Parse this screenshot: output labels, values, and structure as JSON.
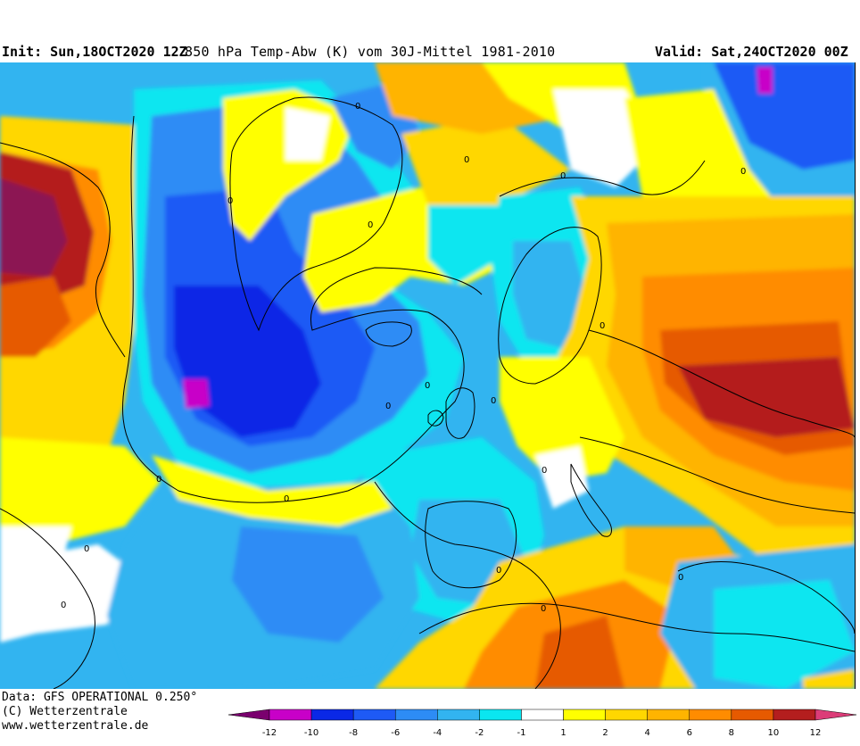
{
  "header": {
    "init_text": "Init: Sun,18OCT2020 12Z",
    "title": "850 hPa Temp-Abw (K) vom 30J-Mittel 1981-2010",
    "valid_text": "Valid: Sat,24OCT2020 00Z"
  },
  "footer": {
    "data_line": "Data: GFS OPERATIONAL 0.250°",
    "copyright": "(C) Wetterzentrale",
    "website": "www.wetterzentrale.de"
  },
  "legend": {
    "labels": [
      "-12",
      "-10",
      "-8",
      "-6",
      "-4",
      "-2",
      "-1",
      "1",
      "2",
      "4",
      "6",
      "8",
      "10",
      "12"
    ],
    "colors": [
      "#7a006e",
      "#c800c8",
      "#0a28e6",
      "#1e5af5",
      "#2d8cf5",
      "#32b4f0",
      "#0ae6f0",
      "#ffffff",
      "#ffff00",
      "#ffd700",
      "#ffb400",
      "#ff8c00",
      "#e65a00",
      "#b41e1e",
      "#dc3c78"
    ]
  },
  "contour_labels": [
    "0",
    "0",
    "0",
    "0",
    "0",
    "0",
    "0",
    "0",
    "0",
    "0",
    "0",
    "0",
    "0",
    "0",
    "0",
    "0",
    "0",
    "0"
  ]
}
